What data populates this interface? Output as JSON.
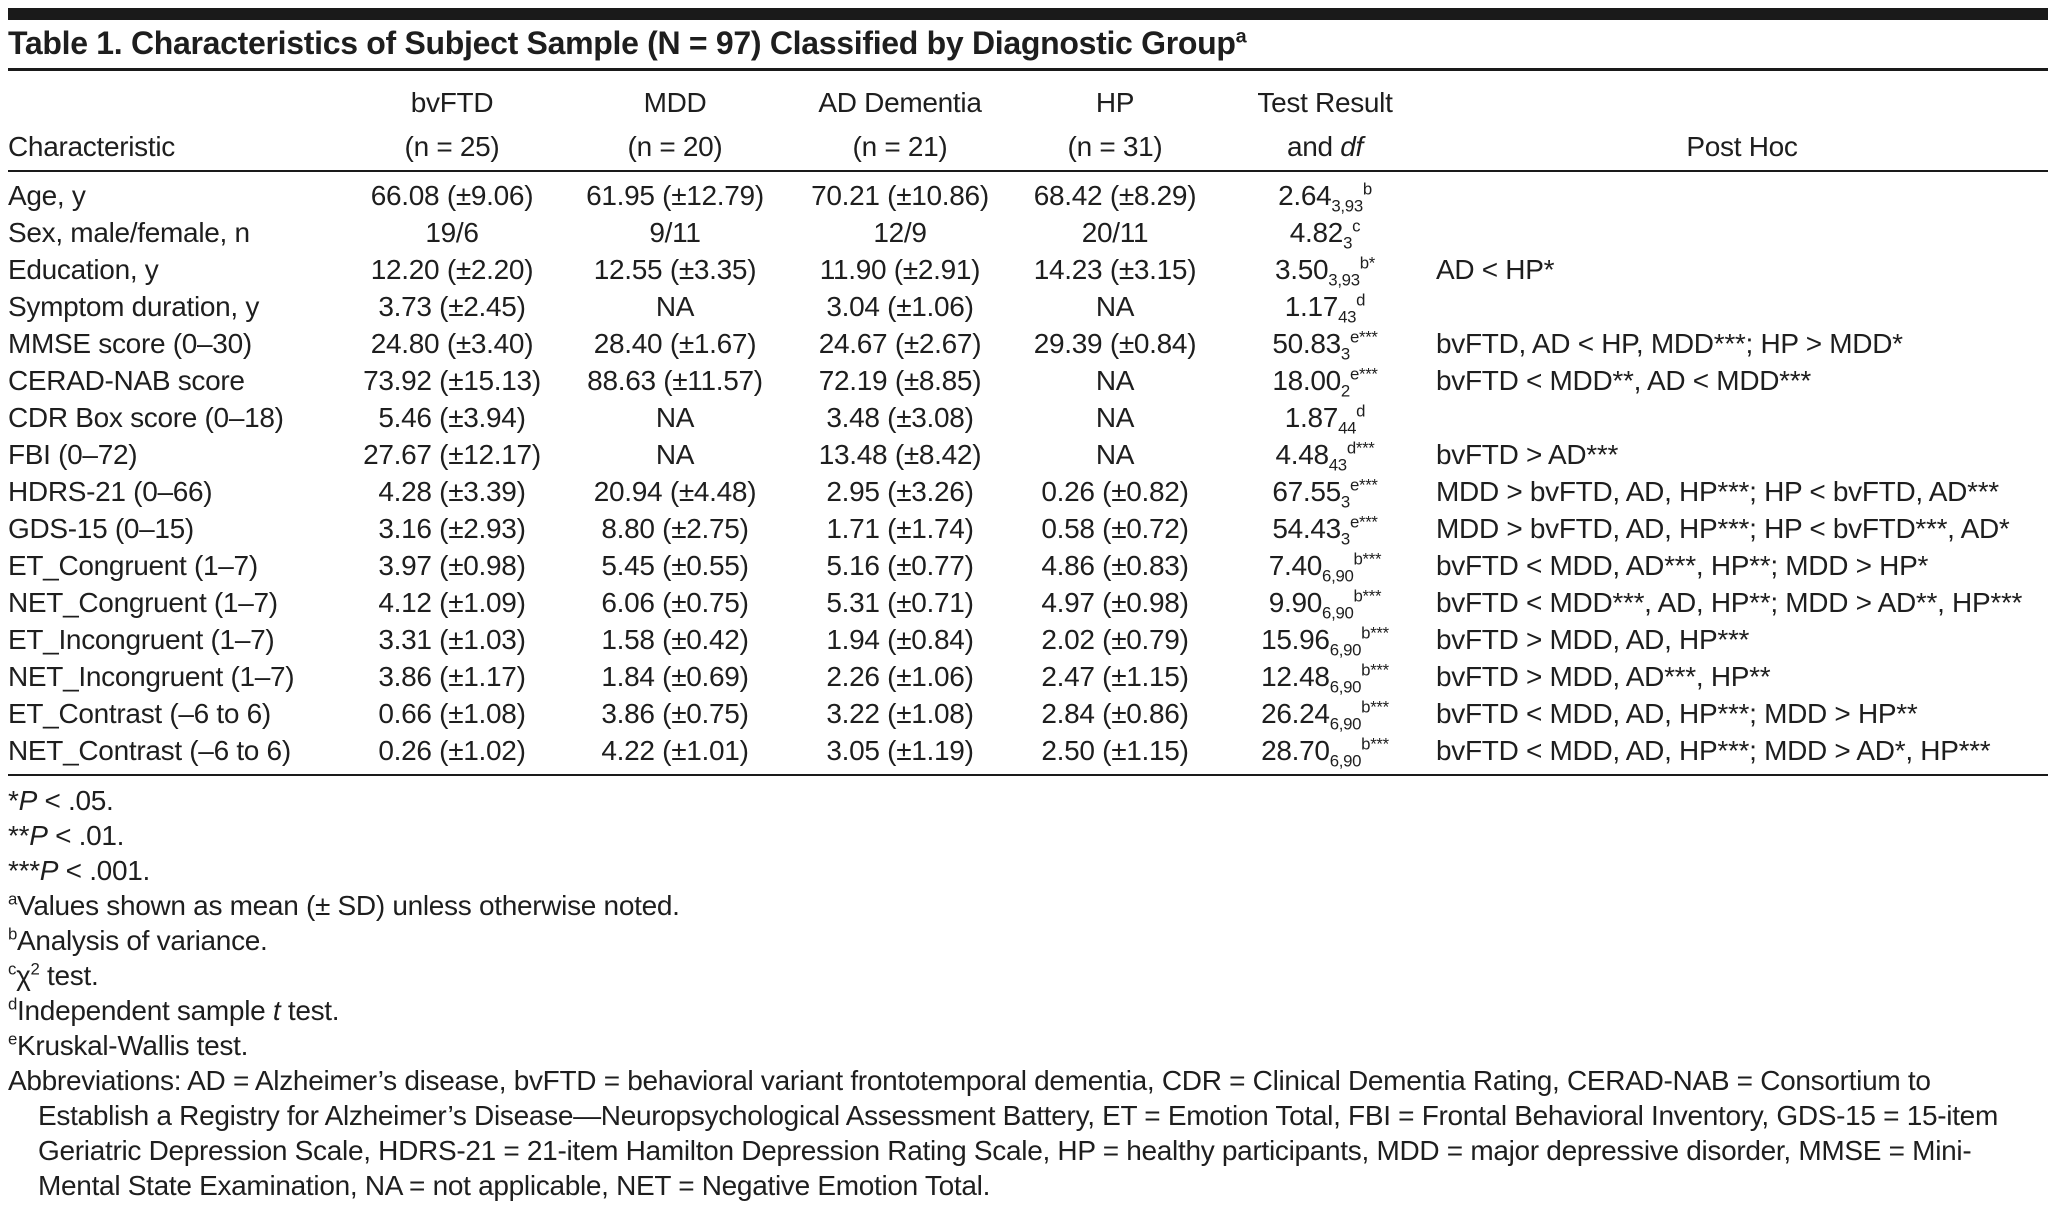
{
  "colors": {
    "background": "#ffffff",
    "text": "#1e1e1e",
    "rule": "#1a1a1a"
  },
  "title": {
    "text": "Table 1. Characteristics of Subject Sample (N = 97) Classified by Diagnostic Group",
    "sup": "a"
  },
  "header": {
    "characteristic_label": "Characteristic",
    "groups": [
      {
        "name": "bvFTD",
        "n": "(n = 25)"
      },
      {
        "name": "MDD",
        "n": "(n = 20)"
      },
      {
        "name": "AD Dementia",
        "n": "(n = 21)"
      },
      {
        "name": "HP",
        "n": "(n = 31)"
      }
    ],
    "test_result": {
      "line1": "Test Result",
      "line2_segments": [
        {
          "text": "and "
        },
        {
          "text": "df",
          "fmt": "italic"
        }
      ]
    },
    "post_hoc_label": "Post Hoc"
  },
  "table": {
    "rows": [
      {
        "characteristic": "Age, y",
        "values": [
          "66.08 (±9.06)",
          "61.95 (±12.79)",
          "70.21 (±10.86)",
          "68.42 (±8.29)"
        ],
        "test": [
          {
            "text": "2.64"
          },
          {
            "text": "3,93",
            "fmt": "sub"
          },
          {
            "text": "b",
            "fmt": "sup"
          }
        ],
        "post_hoc": ""
      },
      {
        "characteristic": "Sex, male/female, n",
        "values": [
          "19/6",
          "9/11",
          "12/9",
          "20/11"
        ],
        "test": [
          {
            "text": "4.82"
          },
          {
            "text": "3",
            "fmt": "sub"
          },
          {
            "text": "c",
            "fmt": "sup"
          }
        ],
        "post_hoc": ""
      },
      {
        "characteristic": "Education, y",
        "values": [
          "12.20 (±2.20)",
          "12.55 (±3.35)",
          "11.90 (±2.91)",
          "14.23 (±3.15)"
        ],
        "test": [
          {
            "text": "3.50"
          },
          {
            "text": "3,93",
            "fmt": "sub"
          },
          {
            "text": "b*",
            "fmt": "sup"
          }
        ],
        "post_hoc": "AD < HP*"
      },
      {
        "characteristic": "Symptom duration, y",
        "values": [
          "3.73 (±2.45)",
          "NA",
          "3.04 (±1.06)",
          "NA"
        ],
        "test": [
          {
            "text": "1.17"
          },
          {
            "text": "43",
            "fmt": "sub"
          },
          {
            "text": "d",
            "fmt": "sup"
          }
        ],
        "post_hoc": ""
      },
      {
        "characteristic": "MMSE score (0–30)",
        "values": [
          "24.80 (±3.40)",
          "28.40 (±1.67)",
          "24.67 (±2.67)",
          "29.39 (±0.84)"
        ],
        "test": [
          {
            "text": "50.83"
          },
          {
            "text": "3",
            "fmt": "sub"
          },
          {
            "text": "e***",
            "fmt": "sup"
          }
        ],
        "post_hoc": "bvFTD, AD < HP, MDD***; HP > MDD*"
      },
      {
        "characteristic": "CERAD-NAB score",
        "values": [
          "73.92 (±15.13)",
          "88.63 (±11.57)",
          "72.19 (±8.85)",
          "NA"
        ],
        "test": [
          {
            "text": "18.00"
          },
          {
            "text": "2",
            "fmt": "sub"
          },
          {
            "text": "e***",
            "fmt": "sup"
          }
        ],
        "post_hoc": "bvFTD < MDD**, AD < MDD***"
      },
      {
        "characteristic": "CDR Box score (0–18)",
        "values": [
          "5.46 (±3.94)",
          "NA",
          "3.48 (±3.08)",
          "NA"
        ],
        "test": [
          {
            "text": "1.87"
          },
          {
            "text": "44",
            "fmt": "sub"
          },
          {
            "text": "d",
            "fmt": "sup"
          }
        ],
        "post_hoc": ""
      },
      {
        "characteristic": "FBI (0–72)",
        "values": [
          "27.67 (±12.17)",
          "NA",
          "13.48 (±8.42)",
          "NA"
        ],
        "test": [
          {
            "text": "4.48"
          },
          {
            "text": "43",
            "fmt": "sub"
          },
          {
            "text": "d***",
            "fmt": "sup"
          }
        ],
        "post_hoc": "bvFTD > AD***"
      },
      {
        "characteristic": "HDRS-21 (0–66)",
        "values": [
          "4.28 (±3.39)",
          "20.94 (±4.48)",
          "2.95 (±3.26)",
          "0.26 (±0.82)"
        ],
        "test": [
          {
            "text": "67.55"
          },
          {
            "text": "3",
            "fmt": "sub"
          },
          {
            "text": "e***",
            "fmt": "sup"
          }
        ],
        "post_hoc": "MDD > bvFTD, AD, HP***; HP < bvFTD, AD***"
      },
      {
        "characteristic": "GDS-15 (0–15)",
        "values": [
          "3.16 (±2.93)",
          "8.80 (±2.75)",
          "1.71 (±1.74)",
          "0.58 (±0.72)"
        ],
        "test": [
          {
            "text": "54.43"
          },
          {
            "text": "3",
            "fmt": "sub"
          },
          {
            "text": "e***",
            "fmt": "sup"
          }
        ],
        "post_hoc": "MDD > bvFTD, AD, HP***; HP < bvFTD***, AD*"
      },
      {
        "characteristic": "ET_Congruent (1–7)",
        "values": [
          "3.97 (±0.98)",
          "5.45 (±0.55)",
          "5.16 (±0.77)",
          "4.86 (±0.83)"
        ],
        "test": [
          {
            "text": "7.40"
          },
          {
            "text": "6,90",
            "fmt": "sub"
          },
          {
            "text": "b***",
            "fmt": "sup"
          }
        ],
        "post_hoc": "bvFTD < MDD, AD***, HP**; MDD > HP*"
      },
      {
        "characteristic": "NET_Congruent (1–7)",
        "values": [
          "4.12 (±1.09)",
          "6.06 (±0.75)",
          "5.31 (±0.71)",
          "4.97 (±0.98)"
        ],
        "test": [
          {
            "text": "9.90"
          },
          {
            "text": "6,90",
            "fmt": "sub"
          },
          {
            "text": "b***",
            "fmt": "sup"
          }
        ],
        "post_hoc": "bvFTD < MDD***, AD, HP**; MDD > AD**, HP***"
      },
      {
        "characteristic": "ET_Incongruent (1–7)",
        "values": [
          "3.31 (±1.03)",
          "1.58 (±0.42)",
          "1.94 (±0.84)",
          "2.02 (±0.79)"
        ],
        "test": [
          {
            "text": "15.96"
          },
          {
            "text": "6,90",
            "fmt": "sub"
          },
          {
            "text": "b***",
            "fmt": "sup"
          }
        ],
        "post_hoc": "bvFTD > MDD, AD, HP***"
      },
      {
        "characteristic": "NET_Incongruent (1–7)",
        "values": [
          "3.86 (±1.17)",
          "1.84 (±0.69)",
          "2.26 (±1.06)",
          "2.47 (±1.15)"
        ],
        "test": [
          {
            "text": "12.48"
          },
          {
            "text": "6,90",
            "fmt": "sub"
          },
          {
            "text": "b***",
            "fmt": "sup"
          }
        ],
        "post_hoc": "bvFTD > MDD, AD***, HP**"
      },
      {
        "characteristic": "ET_Contrast (–6 to 6)",
        "values": [
          "0.66 (±1.08)",
          "3.86 (±0.75)",
          "3.22 (±1.08)",
          "2.84 (±0.86)"
        ],
        "test": [
          {
            "text": "26.24"
          },
          {
            "text": "6,90",
            "fmt": "sub"
          },
          {
            "text": "b***",
            "fmt": "sup"
          }
        ],
        "post_hoc": "bvFTD < MDD, AD, HP***; MDD > HP**"
      },
      {
        "characteristic": "NET_Contrast (–6 to 6)",
        "values": [
          "0.26 (±1.02)",
          "4.22 (±1.01)",
          "3.05 (±1.19)",
          "2.50 (±1.15)"
        ],
        "test": [
          {
            "text": "28.70"
          },
          {
            "text": "6,90",
            "fmt": "sub"
          },
          {
            "text": "b***",
            "fmt": "sup"
          }
        ],
        "post_hoc": "bvFTD < MDD, AD, HP***; MDD > AD*, HP***"
      }
    ]
  },
  "footnotes": [
    [
      {
        "text": "*"
      },
      {
        "text": "P",
        "fmt": "italic"
      },
      {
        "text": " < .05."
      }
    ],
    [
      {
        "text": "**"
      },
      {
        "text": "P",
        "fmt": "italic"
      },
      {
        "text": " < .01."
      }
    ],
    [
      {
        "text": "***"
      },
      {
        "text": "P",
        "fmt": "italic"
      },
      {
        "text": " < .001."
      }
    ],
    [
      {
        "text": "a",
        "fmt": "sup"
      },
      {
        "text": "Values shown as mean (± SD) unless otherwise noted."
      }
    ],
    [
      {
        "text": "b",
        "fmt": "sup"
      },
      {
        "text": "Analysis of variance."
      }
    ],
    [
      {
        "text": "c",
        "fmt": "sup"
      },
      {
        "text": "χ"
      },
      {
        "text": "2",
        "fmt": "sup"
      },
      {
        "text": " test."
      }
    ],
    [
      {
        "text": "d",
        "fmt": "sup"
      },
      {
        "text": "Independent sample "
      },
      {
        "text": "t",
        "fmt": "italic"
      },
      {
        "text": " test."
      }
    ],
    [
      {
        "text": "e",
        "fmt": "sup"
      },
      {
        "text": "Kruskal-Wallis test."
      }
    ]
  ],
  "abbreviations": "Abbreviations: AD = Alzheimer’s disease, bvFTD = behavioral variant frontotemporal dementia, CDR = Clinical Dementia Rating, CERAD-NAB = Consortium to Establish a Registry for Alzheimer’s Disease—Neuropsychological Assessment Battery, ET = Emotion Total, FBI = Frontal Behavioral Inventory, GDS-15 = 15-item Geriatric Depression Scale, HDRS-21 = 21-item Hamilton Depression Rating Scale, HP = healthy participants, MDD = major depressive disorder, MMSE = Mini-Mental State Examination, NA = not applicable, NET = Negative Emotion Total."
}
